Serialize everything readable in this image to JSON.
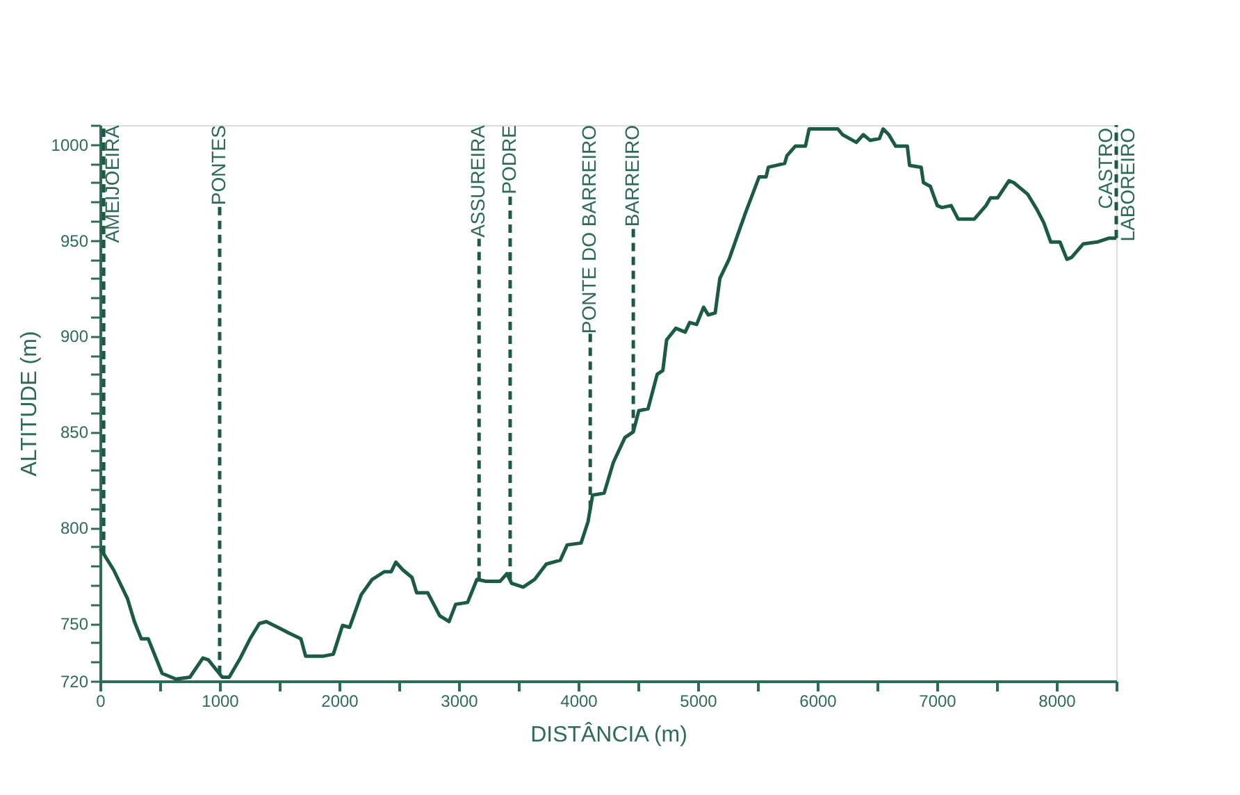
{
  "chart_data": {
    "type": "line",
    "xlabel": "DISTÂNCIA (m)",
    "ylabel": "ALTITUDE (m)",
    "x": [
      0,
      23,
      113,
      229,
      287,
      345,
      403,
      519,
      635,
      751,
      860,
      906,
      1022,
      1080,
      1173,
      1254,
      1332,
      1390,
      1487,
      1580,
      1680,
      1719,
      1870,
      1951,
      2028,
      2087,
      2184,
      2276,
      2377,
      2435,
      2474,
      2532,
      2609,
      2648,
      2741,
      2841,
      2919,
      2974,
      3074,
      3152,
      3229,
      3345,
      3403,
      3442,
      3539,
      3635,
      3732,
      3849,
      3907,
      4023,
      4081,
      4120,
      4216,
      4293,
      4390,
      4460,
      4506,
      4583,
      4660,
      4707,
      4739,
      4816,
      4894,
      4932,
      4990,
      5048,
      5087,
      5145,
      5184,
      5261,
      5397,
      5513,
      5571,
      5590,
      5726,
      5745,
      5815,
      5900,
      5931,
      6171,
      6210,
      6326,
      6384,
      6442,
      6519,
      6550,
      6597,
      6655,
      6752,
      6771,
      6868,
      6887,
      6945,
      7003,
      7042,
      7119,
      7177,
      7313,
      7410,
      7448,
      7507,
      7603,
      7642,
      7758,
      7836,
      7894,
      7952,
      8029,
      8087,
      8126,
      8223,
      8339,
      8436,
      8500
    ],
    "series": [
      {
        "color": "#1b5a43",
        "values": [
          789,
          787,
          778,
          763,
          751,
          742,
          742,
          724,
          721,
          722,
          732,
          731,
          722,
          722,
          732,
          742,
          750,
          751,
          748,
          745,
          742,
          733,
          733,
          734,
          749,
          748,
          765,
          773,
          777,
          777,
          782,
          778,
          774,
          766,
          766,
          754,
          751,
          760,
          761,
          773,
          772,
          772,
          776,
          771,
          769,
          773,
          781,
          783,
          791,
          792,
          803,
          817,
          818,
          834,
          847,
          850,
          861,
          862,
          880,
          882,
          898,
          904,
          902,
          907,
          906,
          915,
          911,
          912,
          930,
          940,
          964,
          983,
          983,
          988,
          990,
          994,
          999,
          999,
          1008,
          1008,
          1005,
          1001,
          1005,
          1002,
          1003,
          1008,
          1005,
          999,
          999,
          989,
          988,
          980,
          978,
          968,
          967,
          968,
          961,
          961,
          968,
          972,
          972,
          981,
          980,
          974,
          966,
          959,
          949,
          949,
          940,
          941,
          948,
          949,
          951,
          951
        ]
      }
    ],
    "xlim": [
      0,
      8500
    ],
    "ylim": [
      720,
      1010
    ],
    "xticks": [
      0,
      {
        "value": 500,
        "label": null
      },
      1000,
      {
        "value": 1500,
        "label": null
      },
      2000,
      {
        "value": 2500,
        "label": null
      },
      3000,
      {
        "value": 3500,
        "label": null
      },
      4000,
      {
        "value": 4500,
        "label": null
      },
      5000,
      {
        "value": 5500,
        "label": null
      },
      6000,
      {
        "value": 6500,
        "label": null
      },
      7000,
      {
        "value": 7500,
        "label": null
      },
      8000,
      {
        "value": 8500,
        "label": null
      }
    ],
    "yticks": [
      720,
      {
        "value": 730,
        "label": null
      },
      {
        "value": 740,
        "label": null
      },
      750,
      {
        "value": 760,
        "label": null
      },
      {
        "value": 770,
        "label": null
      },
      {
        "value": 780,
        "label": null
      },
      {
        "value": 790,
        "label": null
      },
      800,
      {
        "value": 810,
        "label": null
      },
      {
        "value": 820,
        "label": null
      },
      {
        "value": 830,
        "label": null
      },
      {
        "value": 840,
        "label": null
      },
      850,
      {
        "value": 860,
        "label": null
      },
      {
        "value": 870,
        "label": null
      },
      {
        "value": 880,
        "label": null
      },
      {
        "value": 890,
        "label": null
      },
      900,
      {
        "value": 910,
        "label": null
      },
      {
        "value": 920,
        "label": null
      },
      {
        "value": 930,
        "label": null
      },
      {
        "value": 940,
        "label": null
      },
      950,
      {
        "value": 960,
        "label": null
      },
      {
        "value": 970,
        "label": null
      },
      {
        "value": 980,
        "label": null
      },
      {
        "value": 990,
        "label": null
      },
      1000,
      {
        "value": 1010,
        "label": null
      }
    ],
    "ref_lines": [
      {
        "axis": "x",
        "value": 30,
        "label": "AMEIJOEIRA",
        "color": "#1b5a43",
        "line_style": "dashed"
      },
      {
        "axis": "x",
        "value": 1000,
        "label": "PONTES",
        "color": "#1b5a43",
        "line_style": "dashed"
      },
      {
        "axis": "x",
        "value": 3170,
        "label": "ASSUREIRA",
        "color": "#1b5a43",
        "line_style": "dashed"
      },
      {
        "axis": "x",
        "value": 3430,
        "label": "PODRE",
        "color": "#1b5a43",
        "line_style": "dashed"
      },
      {
        "axis": "x",
        "value": 4100,
        "label": "PONTE DO BARREIRO",
        "color": "#1b5a43",
        "line_style": "dashed"
      },
      {
        "axis": "x",
        "value": 4460,
        "label": "BARREIRO",
        "color": "#1b5a43",
        "line_style": "dashed"
      },
      {
        "axis": "x",
        "value": 8500,
        "label": "CASTRO LABOREIRO",
        "color": "#1b5a43",
        "line_style": "dashed"
      }
    ],
    "grid": false,
    "marker": "none",
    "line_style": "solid"
  }
}
